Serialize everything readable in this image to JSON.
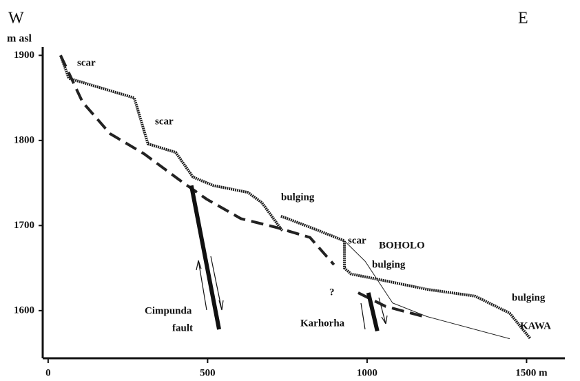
{
  "chart_data": {
    "type": "line",
    "annotations": [
      "W",
      "E",
      "m asl",
      "scar",
      "scar",
      "bulging",
      "scar",
      "BOHOLO",
      "bulging",
      "bulging",
      "KAWA",
      "Cimpunda",
      "fault",
      "?",
      "Karhorha"
    ],
    "xlim": [
      -17,
      1620
    ],
    "ylim": [
      1544,
      1910
    ],
    "xticks": [
      0,
      500,
      1000,
      {
        "value": 1500,
        "label": "1500 m"
      }
    ],
    "yticks": [
      1600,
      1700,
      1800,
      1900
    ],
    "series": [
      {
        "style": "solid",
        "color": "#222",
        "x": [
          39,
          65,
          270,
          313,
          400,
          454,
          518,
          626,
          670,
          734,
          null,
          730,
          821,
          929,
          929,
          950,
          1058,
          1188,
          1339,
          1447,
          1512
        ],
        "values": [
          1900,
          1873,
          1850,
          1796,
          1786,
          1757,
          1747,
          1739,
          1727,
          1694,
          null,
          1711,
          1698,
          1682,
          1650,
          1643,
          1635,
          1625,
          1617,
          1597,
          1567
        ]
      },
      {
        "style": "dashed",
        "color": "#222",
        "x": [
          39,
          108,
          194,
          302,
          410,
          497,
          605,
          713,
          821,
          896,
          null,
          972,
          1058,
          1188
        ],
        "values": [
          1900,
          1845,
          1808,
          1784,
          1754,
          1731,
          1708,
          1698,
          1686,
          1654,
          null,
          1621,
          1605,
          1592
        ]
      },
      {
        "style": "thin",
        "color": "#222",
        "x": [
          929,
          994,
          1080,
          1188,
          1447
        ],
        "values": [
          1682,
          1658,
          1609,
          1593,
          1567
        ]
      },
      {
        "style": "fault",
        "color": "#111",
        "x": [
          449,
          536,
          null,
          1004,
          1032
        ],
        "values": [
          1747,
          1578,
          null,
          1621,
          1576
        ]
      }
    ]
  }
}
